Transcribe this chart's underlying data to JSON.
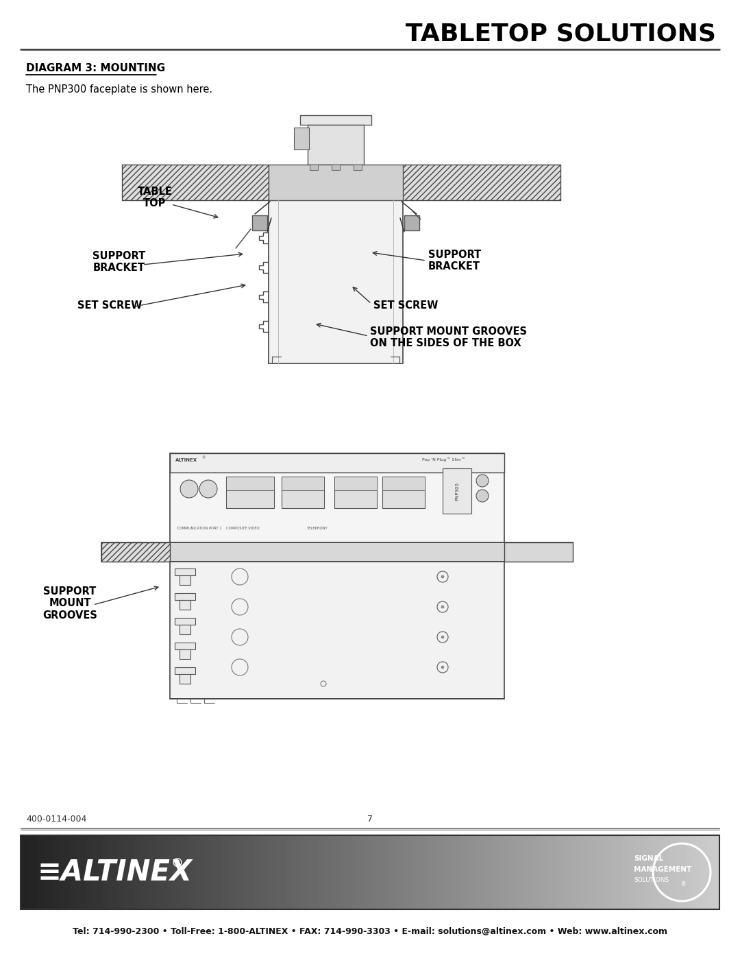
{
  "title": "TABLETOP SOLUTIONS",
  "diagram_label": "DIAGRAM 3: MOUNTING",
  "subtitle": "The PNP300 faceplate is shown here.",
  "labels": {
    "table_top": "TABLE\nTOP",
    "support_bracket_left": "SUPPORT\nBRACKET",
    "support_bracket_right": "SUPPORT\nBRACKET",
    "set_screw_left": "SET SCREW",
    "set_screw_right": "SET SCREW",
    "support_mount_grooves": "SUPPORT MOUNT GROOVES\nON THE SIDES OF THE BOX",
    "support_mount_grooves_left": "SUPPORT\nMOUNT\nGROOVES"
  },
  "footer": {
    "part_number": "400-0114-004",
    "page_number": "7",
    "contact": "Tel: 714-990-2300 • Toll-Free: 1-800-ALTINEX • FAX: 714-990-3303 • E-mail: solutions@altinex.com • Web: www.altinex.com"
  },
  "colors": {
    "white": "#ffffff",
    "black": "#000000",
    "light_gray": "#d0d0d0",
    "medium_gray": "#a0a0a0",
    "dark_gray": "#606060",
    "line_color": "#1a1a1a",
    "box_fill": "#f0f0f0"
  }
}
